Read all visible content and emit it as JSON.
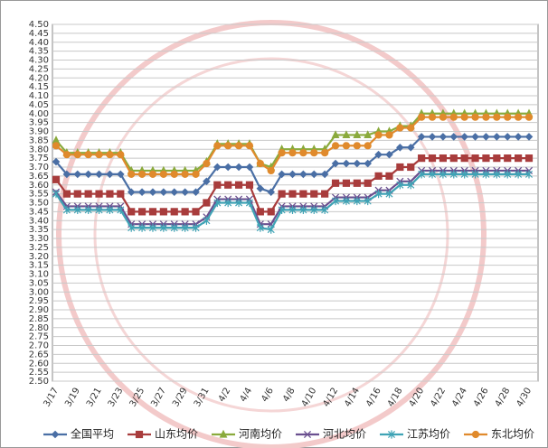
{
  "chart_data": {
    "type": "line",
    "categories": [
      "3/17",
      null,
      "3/19",
      null,
      "3/21",
      null,
      "3/23",
      null,
      "3/25",
      null,
      "3/27",
      null,
      "3/29",
      null,
      "3/31",
      null,
      "4/2",
      null,
      "4/4",
      null,
      "4/6",
      null,
      "4/8",
      null,
      "4/10",
      null,
      "4/12",
      null,
      "4/14",
      null,
      "4/16",
      null,
      "4/18",
      null,
      "4/20",
      null,
      "4/22",
      null,
      "4/24",
      null,
      "4/26",
      null,
      "4/28",
      null,
      "4/30"
    ],
    "series": [
      {
        "name": "全国平均",
        "color": "#4a6fa5",
        "marker": "diamond",
        "values": [
          3.73,
          3.66,
          3.66,
          3.66,
          3.66,
          3.66,
          3.66,
          3.56,
          3.56,
          3.56,
          3.56,
          3.56,
          3.56,
          3.56,
          3.62,
          3.7,
          3.7,
          3.7,
          3.7,
          3.58,
          3.56,
          3.66,
          3.66,
          3.66,
          3.66,
          3.66,
          3.72,
          3.72,
          3.72,
          3.72,
          3.77,
          3.77,
          3.81,
          3.81,
          3.87,
          3.87,
          3.87,
          3.87,
          3.87,
          3.87,
          3.87,
          3.87,
          3.87,
          3.87,
          3.87
        ]
      },
      {
        "name": "山东均价",
        "color": "#a83c3c",
        "marker": "square",
        "values": [
          3.63,
          3.55,
          3.55,
          3.55,
          3.55,
          3.55,
          3.55,
          3.45,
          3.45,
          3.45,
          3.45,
          3.45,
          3.45,
          3.45,
          3.5,
          3.6,
          3.6,
          3.6,
          3.6,
          3.45,
          3.45,
          3.55,
          3.55,
          3.55,
          3.55,
          3.55,
          3.61,
          3.61,
          3.61,
          3.61,
          3.65,
          3.65,
          3.7,
          3.7,
          3.75,
          3.75,
          3.75,
          3.75,
          3.75,
          3.75,
          3.75,
          3.75,
          3.75,
          3.75,
          3.75
        ]
      },
      {
        "name": "河南均价",
        "color": "#8aaa3c",
        "marker": "triangle",
        "values": [
          3.85,
          3.78,
          3.78,
          3.78,
          3.78,
          3.78,
          3.78,
          3.68,
          3.68,
          3.68,
          3.68,
          3.68,
          3.68,
          3.68,
          3.73,
          3.83,
          3.83,
          3.83,
          3.83,
          3.72,
          3.7,
          3.8,
          3.8,
          3.8,
          3.8,
          3.8,
          3.88,
          3.88,
          3.88,
          3.88,
          3.9,
          3.9,
          3.93,
          3.93,
          4.0,
          4.0,
          4.0,
          4.0,
          4.0,
          4.0,
          4.0,
          4.0,
          4.0,
          4.0,
          4.0
        ]
      },
      {
        "name": "河北均价",
        "color": "#6a4f8f",
        "marker": "x",
        "values": [
          3.56,
          3.48,
          3.48,
          3.48,
          3.48,
          3.48,
          3.48,
          3.38,
          3.38,
          3.38,
          3.38,
          3.38,
          3.38,
          3.38,
          3.42,
          3.52,
          3.52,
          3.52,
          3.52,
          3.38,
          3.38,
          3.48,
          3.48,
          3.48,
          3.48,
          3.48,
          3.53,
          3.53,
          3.53,
          3.53,
          3.57,
          3.57,
          3.62,
          3.62,
          3.68,
          3.68,
          3.68,
          3.68,
          3.68,
          3.68,
          3.68,
          3.68,
          3.68,
          3.68,
          3.68
        ]
      },
      {
        "name": "江苏均价",
        "color": "#3fa3b5",
        "marker": "star",
        "values": [
          3.55,
          3.46,
          3.46,
          3.46,
          3.46,
          3.46,
          3.46,
          3.36,
          3.36,
          3.36,
          3.36,
          3.36,
          3.36,
          3.36,
          3.4,
          3.5,
          3.5,
          3.5,
          3.5,
          3.36,
          3.35,
          3.46,
          3.46,
          3.46,
          3.46,
          3.46,
          3.51,
          3.51,
          3.51,
          3.51,
          3.55,
          3.55,
          3.6,
          3.6,
          3.66,
          3.66,
          3.66,
          3.66,
          3.66,
          3.66,
          3.66,
          3.66,
          3.66,
          3.66,
          3.66
        ]
      },
      {
        "name": "东北均价",
        "color": "#e08a2c",
        "marker": "circle",
        "values": [
          3.82,
          3.77,
          3.77,
          3.77,
          3.77,
          3.77,
          3.77,
          3.66,
          3.66,
          3.66,
          3.66,
          3.66,
          3.66,
          3.66,
          3.72,
          3.82,
          3.82,
          3.82,
          3.82,
          3.72,
          3.68,
          3.78,
          3.78,
          3.78,
          3.78,
          3.78,
          3.82,
          3.82,
          3.82,
          3.82,
          3.88,
          3.88,
          3.92,
          3.92,
          3.98,
          3.98,
          3.98,
          3.98,
          3.98,
          3.98,
          3.98,
          3.98,
          3.98,
          3.98,
          3.98
        ]
      }
    ],
    "ylim": [
      2.5,
      4.5
    ],
    "yticks": [
      {
        "value": 2.5,
        "label": "2.50"
      },
      {
        "value": 2.55,
        "label": "2.55"
      },
      {
        "value": 2.6,
        "label": "2.60"
      },
      {
        "value": 2.65,
        "label": "2.65"
      },
      {
        "value": 2.7,
        "label": "2.70"
      },
      {
        "value": 2.75,
        "label": "2.75"
      },
      {
        "value": 2.8,
        "label": "2.80"
      },
      {
        "value": 2.85,
        "label": "2.85"
      },
      {
        "value": 2.9,
        "label": "2.90"
      },
      {
        "value": 2.95,
        "label": "2.95"
      },
      {
        "value": 3.0,
        "label": "3.00"
      },
      {
        "value": 3.05,
        "label": "3.05"
      },
      {
        "value": 3.1,
        "label": "3.10"
      },
      {
        "value": 3.15,
        "label": "3.15"
      },
      {
        "value": 3.2,
        "label": "3.20"
      },
      {
        "value": 3.25,
        "label": "3.25"
      },
      {
        "value": 3.3,
        "label": "3.30"
      },
      {
        "value": 3.35,
        "label": "3.35"
      },
      {
        "value": 3.4,
        "label": "3.40"
      },
      {
        "value": 3.45,
        "label": "3.45"
      },
      {
        "value": 3.5,
        "label": "3.50"
      },
      {
        "value": 3.55,
        "label": "3.55"
      },
      {
        "value": 3.6,
        "label": "3.60"
      },
      {
        "value": 3.65,
        "label": "3.65"
      },
      {
        "value": 3.7,
        "label": "3.70"
      },
      {
        "value": 3.75,
        "label": "3.75"
      },
      {
        "value": 3.8,
        "label": "3.80"
      },
      {
        "value": 3.85,
        "label": "3.85"
      },
      {
        "value": 3.9,
        "label": "3.90"
      },
      {
        "value": 3.95,
        "label": "3.95"
      },
      {
        "value": 4.0,
        "label": "4.00"
      },
      {
        "value": 4.05,
        "label": "4.05"
      },
      {
        "value": 4.1,
        "label": "4.10"
      },
      {
        "value": 4.15,
        "label": "4.15"
      },
      {
        "value": 4.2,
        "label": "4.20"
      },
      {
        "value": 4.25,
        "label": "4.25"
      },
      {
        "value": 4.3,
        "label": "4.30"
      },
      {
        "value": 4.35,
        "label": "4.35"
      },
      {
        "value": 4.4,
        "label": "4.40"
      },
      {
        "value": 4.45,
        "label": "4.45"
      },
      {
        "value": 4.5,
        "label": "4.50"
      }
    ],
    "grid": true
  }
}
